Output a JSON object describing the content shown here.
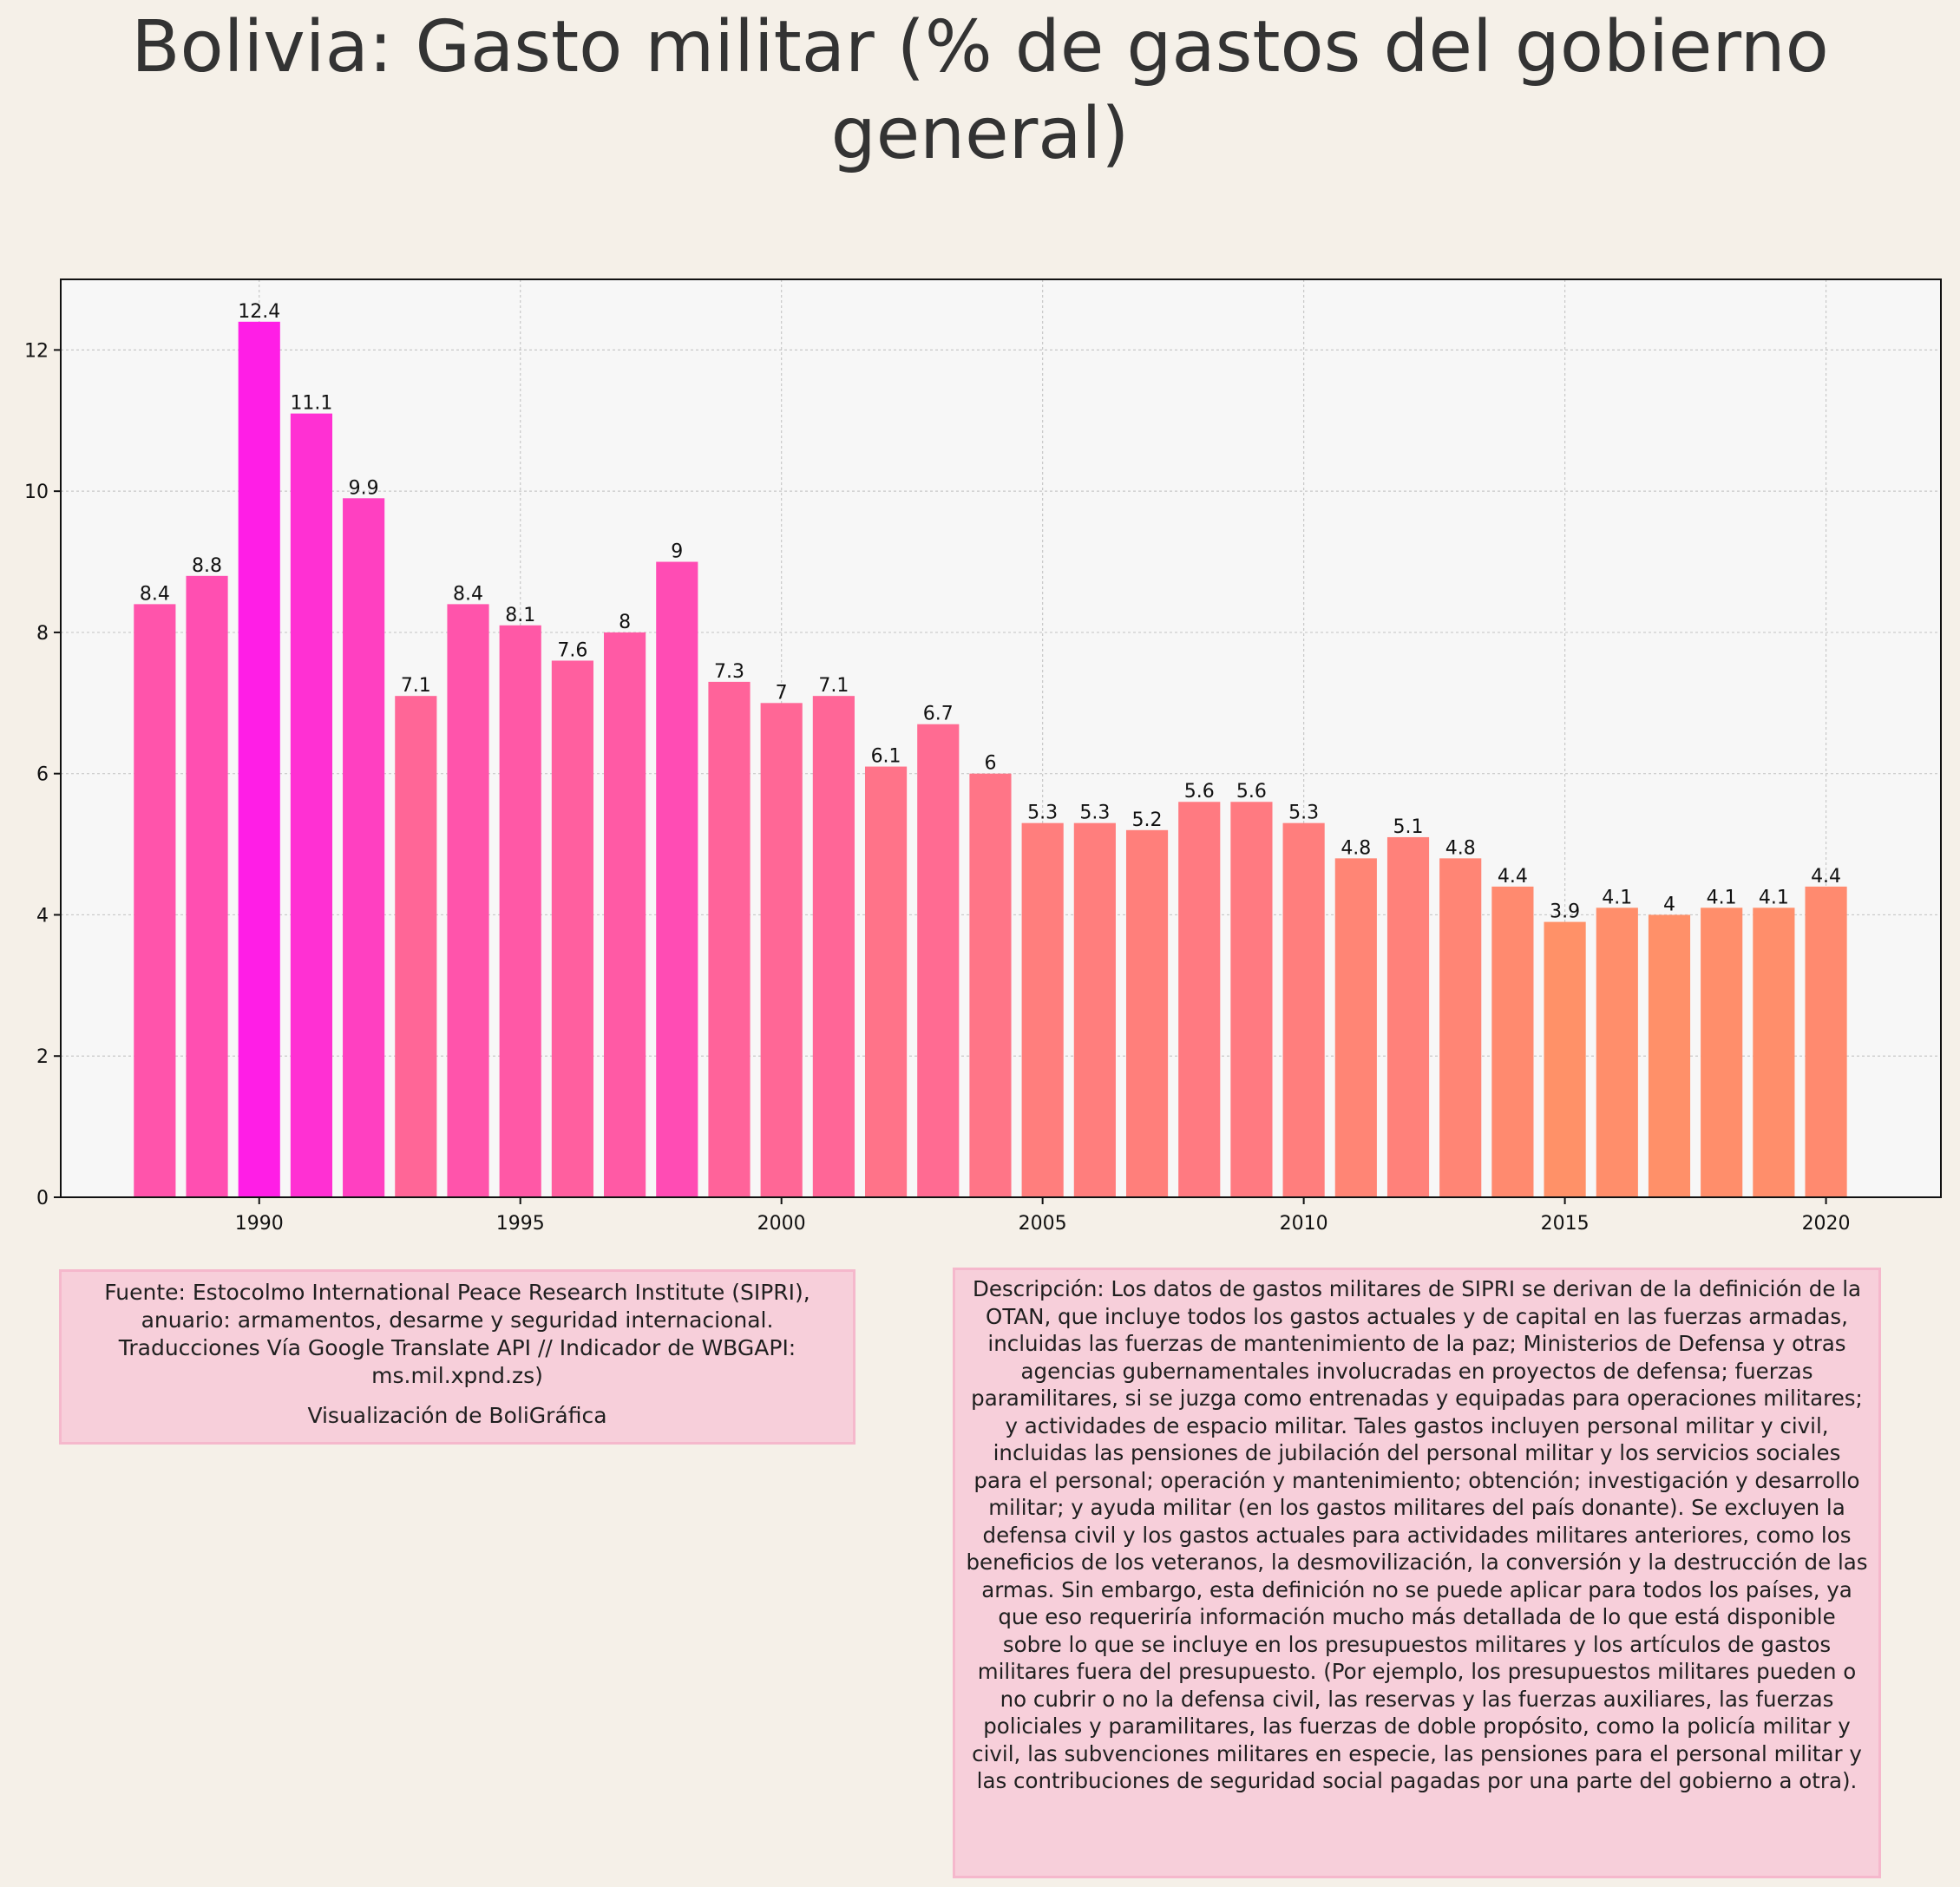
{
  "title": "Bolivia:  Gasto militar (% de gastos del gobierno general)",
  "source": {
    "text": "Fuente: Estocolmo International Peace Research Institute (SIPRI), anuario: armamentos, desarme y seguridad internacional. Traducciones Vía Google Translate API // Indicador de WBGAPI: ms.mil.xpnd.zs)",
    "credit": "Visualización de BoliGráfica"
  },
  "description": "Descripción: Los datos de gastos militares de SIPRI se derivan de la definición de la OTAN, que incluye todos los gastos actuales y de capital en las fuerzas armadas, incluidas las fuerzas de mantenimiento de la paz; Ministerios de Defensa y otras agencias gubernamentales involucradas en proyectos de defensa; fuerzas paramilitares, si se juzga como entrenadas y equipadas para operaciones militares; y actividades de espacio militar. Tales gastos incluyen personal militar y civil, incluidas las pensiones de jubilación del personal militar y los servicios sociales para el personal; operación y mantenimiento; obtención; investigación y desarrollo militar; y ayuda militar (en los gastos militares del país donante). Se excluyen la defensa civil y los gastos actuales para actividades militares anteriores, como los beneficios de los veteranos, la desmovilización, la conversión y la destrucción de las armas. Sin embargo, esta definición no se puede aplicar para todos los países, ya que eso requeriría información mucho más detallada de lo que está disponible sobre lo que se incluye en los presupuestos militares y los artículos de gastos militares fuera del presupuesto. (Por ejemplo, los presupuestos militares pueden o no cubrir o no la defensa civil, las reservas y las fuerzas auxiliares, las fuerzas policiales y paramilitares, las fuerzas de doble propósito, como la policía militar y civil, las subvenciones militares en especie, las pensiones para el personal militar y las contribuciones de seguridad social pagadas por una parte del gobierno a otra).",
  "chart_data": {
    "type": "bar",
    "title": "Bolivia:  Gasto militar (% de gastos del gobierno general)",
    "xlabel": "",
    "ylabel": "",
    "x": [
      1988,
      1989,
      1990,
      1991,
      1992,
      1993,
      1994,
      1995,
      1996,
      1997,
      1998,
      1999,
      2000,
      2001,
      2002,
      2003,
      2004,
      2005,
      2006,
      2007,
      2008,
      2009,
      2010,
      2011,
      2012,
      2013,
      2014,
      2015,
      2016,
      2017,
      2018,
      2019,
      2020
    ],
    "values": [
      8.4,
      8.8,
      12.4,
      11.1,
      9.9,
      7.1,
      8.4,
      8.1,
      7.6,
      8,
      9,
      7.3,
      7,
      7.1,
      6.1,
      6.7,
      6,
      5.3,
      5.3,
      5.2,
      5.6,
      5.6,
      5.3,
      4.8,
      5.1,
      4.8,
      4.4,
      3.9,
      4.1,
      4,
      4.1,
      4.1,
      4.4
    ],
    "data_labels": [
      "8.4",
      "8.8",
      "12.4",
      "11.1",
      "9.9",
      "7.1",
      "8.4",
      "8.1",
      "7.6",
      "8",
      "9",
      "7.3",
      "7",
      "7.1",
      "6.1",
      "6.7",
      "6",
      "5.3",
      "5.3",
      "5.2",
      "5.6",
      "5.6",
      "5.3",
      "4.8",
      "5.1",
      "4.8",
      "4.4",
      "3.9",
      "4.1",
      "4",
      "4.1",
      "4.1",
      "4.4"
    ],
    "xticks": [
      1990,
      1995,
      2000,
      2005,
      2010,
      2015,
      2020
    ],
    "xtick_labels": [
      "1990",
      "1995",
      "2000",
      "2005",
      "2010",
      "2015",
      "2020"
    ],
    "yticks": [
      0,
      2,
      4,
      6,
      8,
      10,
      12
    ],
    "ytick_labels": [
      "0",
      "2",
      "4",
      "6",
      "8",
      "10",
      "12"
    ],
    "xlim": [
      1986.2,
      2022.2
    ],
    "ylim": [
      0,
      13
    ],
    "grid": true,
    "legend": "none",
    "colors": {
      "low": "#ff9168",
      "high": "#ff1ee6",
      "plot_bg": "#f7f7f7",
      "page_bg": "#f5f0e8"
    }
  }
}
